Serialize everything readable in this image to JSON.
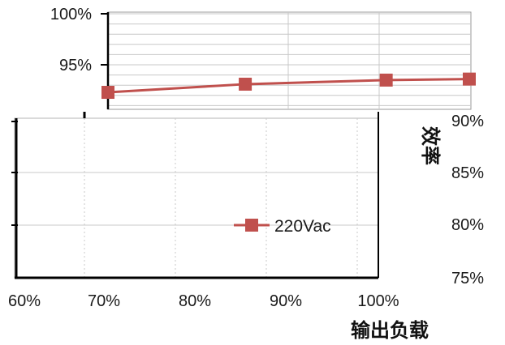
{
  "chart_data": {
    "type": "line",
    "upper_panel": {
      "y_ticks": [
        "100%",
        "95%",
        "90%"
      ],
      "ylim": [
        90,
        100
      ],
      "series": [
        {
          "x_fraction": [
            0,
            0.38,
            0.77,
            1.0
          ],
          "y": [
            92.3,
            93.1,
            93.5,
            93.6
          ],
          "color": "#c0504d"
        }
      ]
    },
    "lower_panel": {
      "x_ticks": [
        "60%",
        "70%",
        "80%",
        "90%",
        "100%"
      ],
      "right_y_ticks": [
        "90%",
        "85%",
        "80%",
        "75%"
      ],
      "ylabel": "效率",
      "xlabel": "输出负载"
    },
    "legend": {
      "entries": [
        {
          "name": "220Vac",
          "color": "#c0504d",
          "marker": "square"
        }
      ]
    }
  }
}
